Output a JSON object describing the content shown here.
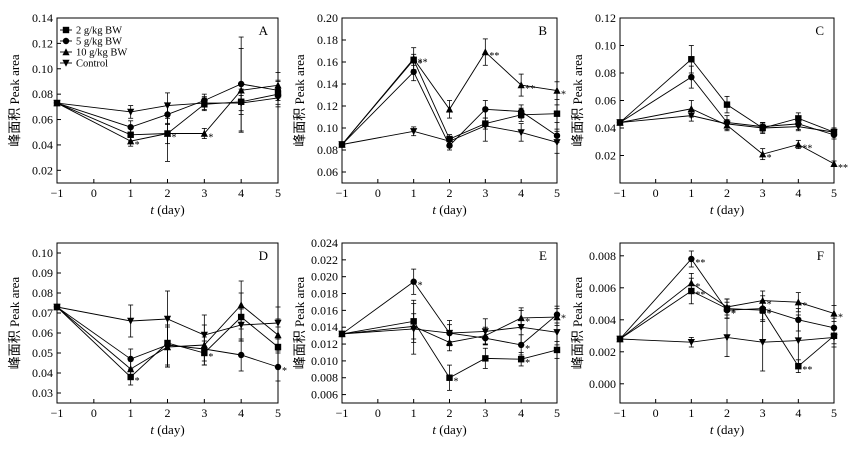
{
  "chart_data": [
    {
      "type": "line",
      "panel": "A",
      "xlabel": "t (day)",
      "ylabel": "峰面积 Peak area",
      "x": [
        -1,
        1,
        2,
        3,
        4,
        5
      ],
      "xlim": [
        -1,
        5
      ],
      "ylim": [
        0.01,
        0.14
      ],
      "yticks": [
        "0.02",
        "0.04",
        "0.06",
        "0.08",
        "0.10",
        "0.12",
        "0.14"
      ],
      "xticks": [
        "-1",
        "0",
        "1",
        "2",
        "3",
        "4",
        "5"
      ],
      "legend": {
        "position": "top-left",
        "entries": [
          "2 g/kg BW",
          "5 g/kg BW",
          "10 g/kg BW",
          "Control"
        ]
      },
      "series": [
        {
          "name": "2 g/kg BW",
          "marker": "square",
          "values": [
            0.073,
            0.048,
            0.049,
            0.072,
            0.074,
            0.08
          ],
          "err": [
            0,
            0.005,
            0.022,
            0.005,
            0.01,
            0.01
          ],
          "sig": [
            "",
            "",
            "*",
            "",
            "",
            ""
          ]
        },
        {
          "name": "5 g/kg BW",
          "marker": "circle",
          "values": [
            0.073,
            0.054,
            0.064,
            0.075,
            0.088,
            0.083
          ],
          "err": [
            0,
            0.005,
            0.008,
            0.005,
            0.037,
            0.008
          ],
          "sig": [
            "",
            "",
            "",
            "",
            "",
            ""
          ]
        },
        {
          "name": "10 g/kg BW",
          "marker": "triangle-up",
          "values": [
            0.073,
            0.043,
            0.049,
            0.049,
            0.083,
            0.087
          ],
          "err": [
            0,
            0.004,
            0.008,
            0.004,
            0.033,
            0.01
          ],
          "sig": [
            "",
            "*",
            "",
            "*",
            "",
            ""
          ]
        },
        {
          "name": "Control",
          "marker": "triangle-down",
          "values": [
            0.073,
            0.066,
            0.071,
            0.073,
            0.073,
            0.077
          ],
          "err": [
            0,
            0.005,
            0.01,
            0.005,
            0.006,
            0.005
          ],
          "sig": [
            "",
            "",
            "",
            "",
            "",
            ""
          ]
        }
      ]
    },
    {
      "type": "line",
      "panel": "B",
      "xlabel": "t (day)",
      "ylabel": "峰面积 Peak area",
      "x": [
        -1,
        1,
        2,
        3,
        4,
        5
      ],
      "xlim": [
        -1,
        5
      ],
      "ylim": [
        0.05,
        0.2
      ],
      "yticks": [
        "0.06",
        "0.08",
        "0.10",
        "0.12",
        "0.14",
        "0.16",
        "0.18",
        "0.20"
      ],
      "xticks": [
        "-1",
        "0",
        "1",
        "2",
        "3",
        "4",
        "5"
      ],
      "series": [
        {
          "name": "2 g/kg BW",
          "marker": "square",
          "values": [
            0.085,
            0.162,
            0.09,
            0.104,
            0.112,
            0.113
          ],
          "err": [
            0,
            0.005,
            0.004,
            0.005,
            0.006,
            0.008
          ],
          "sig": [
            "",
            "*",
            "",
            "",
            "",
            ""
          ]
        },
        {
          "name": "5 g/kg BW",
          "marker": "circle",
          "values": [
            0.085,
            0.151,
            0.084,
            0.117,
            0.115,
            0.093
          ],
          "err": [
            0,
            0.008,
            0.004,
            0.008,
            0.006,
            0.006
          ],
          "sig": [
            "",
            "",
            "",
            "",
            "",
            ""
          ]
        },
        {
          "name": "10 g/kg BW",
          "marker": "triangle-up",
          "values": [
            0.085,
            0.163,
            0.117,
            0.169,
            0.139,
            0.134
          ],
          "err": [
            0,
            0.01,
            0.008,
            0.012,
            0.01,
            0.008
          ],
          "sig": [
            "",
            "**",
            "",
            "**",
            "**",
            "*"
          ]
        },
        {
          "name": "Control",
          "marker": "triangle-down",
          "values": [
            0.085,
            0.097,
            0.088,
            0.102,
            0.096,
            0.087
          ],
          "err": [
            0,
            0.004,
            0.004,
            0.014,
            0.008,
            0.01
          ],
          "sig": [
            "",
            "",
            "",
            "",
            "",
            ""
          ]
        }
      ]
    },
    {
      "type": "line",
      "panel": "C",
      "xlabel": "t (day)",
      "ylabel": "峰面积 Peak area",
      "x": [
        -1,
        1,
        2,
        3,
        4,
        5
      ],
      "xlim": [
        -1,
        5
      ],
      "ylim": [
        0.0,
        0.12
      ],
      "yticks": [
        "0.02",
        "0.04",
        "0.06",
        "0.08",
        "0.10",
        "0.12"
      ],
      "xticks": [
        "-1",
        "0",
        "1",
        "2",
        "3",
        "4",
        "5"
      ],
      "series": [
        {
          "name": "2 g/kg BW",
          "marker": "square",
          "values": [
            0.044,
            0.09,
            0.057,
            0.04,
            0.047,
            0.037
          ],
          "err": [
            0,
            0.01,
            0.006,
            0.004,
            0.004,
            0.003
          ],
          "sig": [
            "",
            "",
            "",
            "",
            "",
            ""
          ]
        },
        {
          "name": "5 g/kg BW",
          "marker": "circle",
          "values": [
            0.044,
            0.077,
            0.044,
            0.041,
            0.043,
            0.035
          ],
          "err": [
            0,
            0.008,
            0.005,
            0.003,
            0.004,
            0.003
          ],
          "sig": [
            "",
            "",
            "",
            "",
            "",
            ""
          ]
        },
        {
          "name": "10 g/kg BW",
          "marker": "triangle-up",
          "values": [
            0.044,
            0.054,
            0.042,
            0.021,
            0.028,
            0.014
          ],
          "err": [
            0,
            0.006,
            0.004,
            0.004,
            0.003,
            0.002
          ],
          "sig": [
            "",
            "",
            "",
            "*",
            "**",
            "**"
          ]
        },
        {
          "name": "Control",
          "marker": "triangle-down",
          "values": [
            0.044,
            0.049,
            0.043,
            0.04,
            0.041,
            0.037
          ],
          "err": [
            0,
            0.004,
            0.003,
            0.003,
            0.003,
            0.003
          ],
          "sig": [
            "",
            "",
            "",
            "",
            "",
            ""
          ]
        }
      ]
    },
    {
      "type": "line",
      "panel": "D",
      "xlabel": "t (day)",
      "ylabel": "峰面积 Peak area",
      "x": [
        -1,
        1,
        2,
        3,
        4,
        5
      ],
      "xlim": [
        -1,
        5
      ],
      "ylim": [
        0.025,
        0.105
      ],
      "yticks": [
        "0.03",
        "0.04",
        "0.05",
        "0.06",
        "0.07",
        "0.08",
        "0.09",
        "0.10"
      ],
      "xticks": [
        "-1",
        "0",
        "1",
        "2",
        "3",
        "4",
        "5"
      ],
      "series": [
        {
          "name": "2 g/kg BW",
          "marker": "square",
          "values": [
            0.073,
            0.038,
            0.055,
            0.05,
            0.068,
            0.053
          ],
          "err": [
            0,
            0.004,
            0.012,
            0.006,
            0.012,
            0.01
          ],
          "sig": [
            "",
            "*",
            "",
            "*",
            "",
            ""
          ]
        },
        {
          "name": "5 g/kg BW",
          "marker": "circle",
          "values": [
            0.073,
            0.047,
            0.054,
            0.052,
            0.049,
            0.043
          ],
          "err": [
            0,
            0.005,
            0.01,
            0.006,
            0.008,
            0.007
          ],
          "sig": [
            "",
            "",
            "",
            "",
            "",
            "*"
          ]
        },
        {
          "name": "10 g/kg BW",
          "marker": "triangle-up",
          "values": [
            0.073,
            0.042,
            0.053,
            0.054,
            0.074,
            0.059
          ],
          "err": [
            0,
            0.004,
            0.01,
            0.01,
            0.012,
            0.008
          ],
          "sig": [
            "",
            "",
            "",
            "",
            "",
            ""
          ]
        },
        {
          "name": "Control",
          "marker": "triangle-down",
          "values": [
            0.073,
            0.066,
            0.067,
            0.059,
            0.064,
            0.065
          ],
          "err": [
            0,
            0.008,
            0.014,
            0.01,
            0.008,
            0.008
          ],
          "sig": [
            "",
            "",
            "",
            "",
            "",
            ""
          ]
        }
      ]
    },
    {
      "type": "line",
      "panel": "E",
      "xlabel": "t (day)",
      "ylabel": "峰面积 Peak area",
      "x": [
        -1,
        1,
        2,
        3,
        4,
        5
      ],
      "xlim": [
        -1,
        5
      ],
      "ylim": [
        0.005,
        0.024
      ],
      "yticks": [
        "0.006",
        "0.008",
        "0.010",
        "0.012",
        "0.014",
        "0.016",
        "0.018",
        "0.020",
        "0.022",
        "0.024"
      ],
      "xticks": [
        "-1",
        "0",
        "1",
        "2",
        "3",
        "4",
        "5"
      ],
      "series": [
        {
          "name": "2 g/kg BW",
          "marker": "square",
          "values": [
            0.0132,
            0.0147,
            0.008,
            0.0103,
            0.0102,
            0.0113
          ],
          "err": [
            0,
            0.0025,
            0.0015,
            0.0012,
            0.0008,
            0.001
          ],
          "sig": [
            "",
            "",
            "*",
            "",
            "*",
            ""
          ]
        },
        {
          "name": "5 g/kg BW",
          "marker": "circle",
          "values": [
            0.0132,
            0.0194,
            0.0133,
            0.0127,
            0.0119,
            0.0155
          ],
          "err": [
            0,
            0.0015,
            0.001,
            0.0008,
            0.0012,
            0.001
          ],
          "sig": [
            "",
            "*",
            "",
            "",
            "*",
            "*"
          ]
        },
        {
          "name": "10 g/kg BW",
          "marker": "triangle-up",
          "values": [
            0.0132,
            0.0141,
            0.0122,
            0.013,
            0.0151,
            0.0152
          ],
          "err": [
            0,
            0.0015,
            0.001,
            0.001,
            0.0012,
            0.001
          ],
          "sig": [
            "",
            "",
            "",
            "",
            "*",
            ""
          ]
        },
        {
          "name": "Control",
          "marker": "triangle-down",
          "values": [
            0.0132,
            0.0138,
            0.0133,
            0.0135,
            0.014,
            0.0134
          ],
          "err": [
            0,
            0.003,
            0.0015,
            0.0015,
            0.002,
            0.0015
          ],
          "sig": [
            "",
            "",
            "",
            "",
            "",
            ""
          ]
        }
      ]
    },
    {
      "type": "line",
      "panel": "F",
      "xlabel": "t (day)",
      "ylabel": "峰面积 Peak area",
      "x": [
        -1,
        1,
        2,
        3,
        4,
        5
      ],
      "xlim": [
        -1,
        5
      ],
      "ylim": [
        -0.0012,
        0.0088
      ],
      "yticks": [
        "0.000",
        "0.002",
        "0.004",
        "0.006",
        "0.008"
      ],
      "xticks": [
        "-1",
        "0",
        "1",
        "2",
        "3",
        "4",
        "5"
      ],
      "series": [
        {
          "name": "2 g/kg BW",
          "marker": "square",
          "values": [
            0.0028,
            0.0058,
            0.0047,
            0.0046,
            0.0011,
            0.003
          ],
          "err": [
            0,
            0.0008,
            0.0006,
            0.0006,
            0.0004,
            0.0005
          ],
          "sig": [
            "",
            "**",
            "*",
            "*",
            "**",
            ""
          ]
        },
        {
          "name": "5 g/kg BW",
          "marker": "circle",
          "values": [
            0.0028,
            0.0078,
            0.0046,
            0.0047,
            0.004,
            0.0035
          ],
          "err": [
            0,
            0.0005,
            0.0005,
            0.0008,
            0.0007,
            0.0006
          ],
          "sig": [
            "",
            "**",
            "*",
            "*",
            "",
            ""
          ]
        },
        {
          "name": "10 g/kg BW",
          "marker": "triangle-up",
          "values": [
            0.0028,
            0.0063,
            0.0048,
            0.0052,
            0.0051,
            0.0044
          ],
          "err": [
            0,
            0.0006,
            0.0005,
            0.0006,
            0.0006,
            0.0005
          ],
          "sig": [
            "",
            "*",
            "",
            "*",
            "*",
            "*"
          ]
        },
        {
          "name": "Control",
          "marker": "triangle-down",
          "values": [
            0.0028,
            0.0026,
            0.0029,
            0.0026,
            0.0027,
            0.0029
          ],
          "err": [
            0,
            0.0003,
            0.0012,
            0.0018,
            0.0016,
            0.0006
          ],
          "sig": [
            "",
            "",
            "",
            "",
            "",
            ""
          ]
        }
      ]
    }
  ]
}
